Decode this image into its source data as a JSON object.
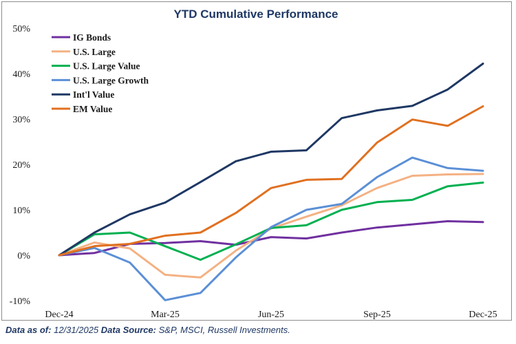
{
  "chart_data": {
    "type": "line",
    "title": "YTD Cumulative Performance",
    "x": [
      "Dec-24",
      "Jan-25",
      "Feb-25",
      "Mar-25",
      "Apr-25",
      "May-25",
      "Jun-25",
      "Jul-25",
      "Aug-25",
      "Sep-25",
      "Oct-25",
      "Nov-25",
      "Dec-25"
    ],
    "xticks": [
      "Dec-24",
      "Mar-25",
      "Jun-25",
      "Sep-25",
      "Dec-25"
    ],
    "ylim": [
      -10,
      50
    ],
    "yticks": [
      "-10%",
      "0%",
      "10%",
      "20%",
      "30%",
      "40%",
      "50%"
    ],
    "ytick_values": [
      -10,
      0,
      10,
      20,
      30,
      40,
      50
    ],
    "grid": false,
    "legend_position": "top-left",
    "series": [
      {
        "name": "IG Bonds",
        "color": "#7030a0",
        "values": [
          0,
          0.5,
          2.5,
          2.7,
          3.1,
          2.3,
          4.0,
          3.7,
          5.0,
          6.1,
          6.8,
          7.5,
          7.3
        ]
      },
      {
        "name": "U.S. Large",
        "color": "#f4b183",
        "values": [
          0,
          2.8,
          1.5,
          -4.3,
          -4.9,
          1.0,
          5.9,
          8.5,
          11.0,
          14.8,
          17.5,
          17.8,
          17.9
        ]
      },
      {
        "name": "U.S. Large Value",
        "color": "#00b050",
        "values": [
          0,
          4.6,
          5.0,
          2.0,
          -1.0,
          2.4,
          6.0,
          6.6,
          10.0,
          11.7,
          12.2,
          15.2,
          16.0
        ]
      },
      {
        "name": "U.S. Large Growth",
        "color": "#5b8fd6",
        "values": [
          0,
          1.6,
          -1.6,
          -9.9,
          -8.3,
          -0.5,
          6.2,
          10.0,
          11.3,
          17.2,
          21.5,
          19.2,
          18.6
        ]
      },
      {
        "name": "Int'l Value",
        "color": "#1f3864",
        "values": [
          0,
          5.0,
          9.0,
          11.6,
          16.1,
          20.7,
          22.8,
          23.1,
          30.2,
          31.9,
          32.9,
          36.5,
          42.2
        ]
      },
      {
        "name": "EM Value",
        "color": "#e07020",
        "values": [
          0,
          2.0,
          2.5,
          4.3,
          5.0,
          9.3,
          14.8,
          16.6,
          16.8,
          24.8,
          29.9,
          28.5,
          32.8
        ]
      }
    ]
  },
  "footer": {
    "as_of_label": "Data as of:",
    "as_of_value": "12/31/2025",
    "source_label": "Data Source:",
    "source_value": "S&P, MSCI, Russell Investments."
  }
}
